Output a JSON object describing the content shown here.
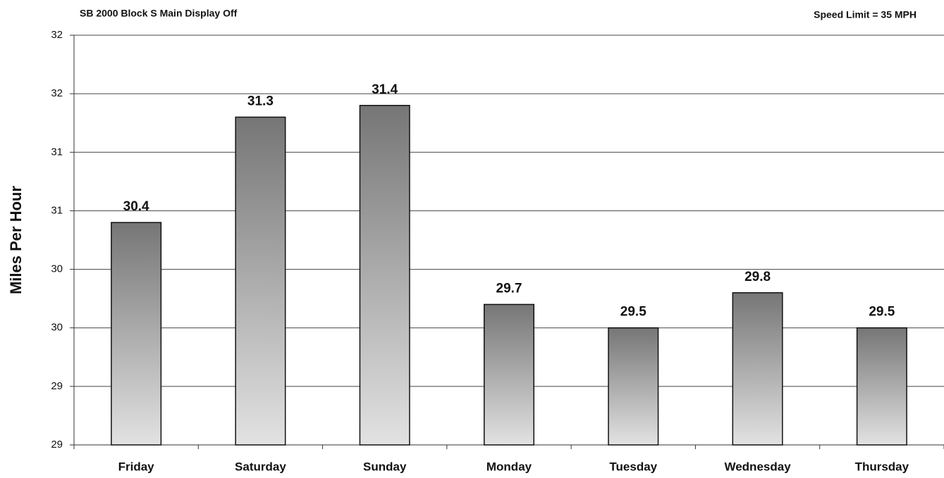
{
  "chart_data": {
    "type": "bar",
    "title": "SB 2000 Block S Main Display Off",
    "subtitle": "Speed Limit = 35 MPH",
    "y_label": "Miles Per Hour",
    "categories": [
      "Friday",
      "Saturday",
      "Sunday",
      "Monday",
      "Tuesday",
      "Wednesday",
      "Thursday"
    ],
    "values": [
      30.4,
      31.3,
      31.4,
      29.7,
      29.5,
      29.8,
      29.5
    ],
    "ylim": [
      28.5,
      32
    ],
    "yticks": [
      {
        "value": 28.5,
        "label": "29"
      },
      29,
      {
        "value": 29.5,
        "label": "30"
      },
      30,
      {
        "value": 30.5,
        "label": "31"
      },
      31,
      {
        "value": 31.5,
        "label": "32"
      },
      32
    ],
    "grid": true
  }
}
